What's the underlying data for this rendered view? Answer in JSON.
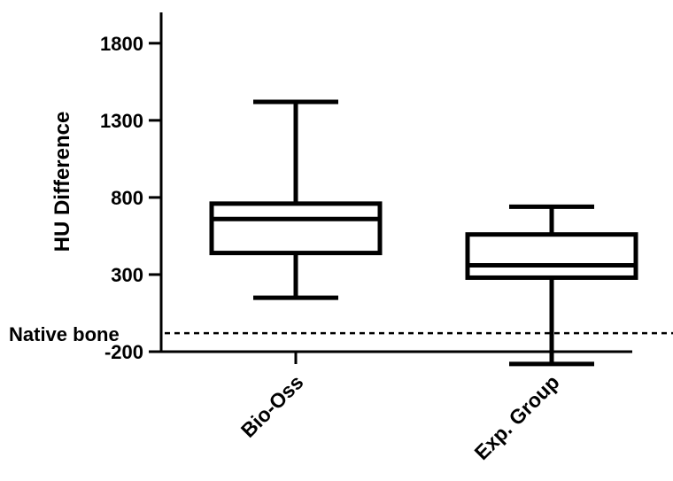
{
  "chart_data": {
    "type": "box",
    "ylabel": "HU Difference",
    "ylim": [
      -200,
      2000
    ],
    "yticks": [
      -200,
      300,
      800,
      1300,
      1800
    ],
    "categories": [
      "Bio-Oss",
      "Exp. Group"
    ],
    "boxes": [
      {
        "name": "Bio-Oss",
        "min": 150,
        "q1": 440,
        "median": 660,
        "q3": 760,
        "max": 1420
      },
      {
        "name": "Exp. Group",
        "min": -280,
        "q1": 280,
        "median": 360,
        "q3": 560,
        "max": 740
      }
    ],
    "reference_line": {
      "label": "Native bone",
      "value": -80,
      "style": "dashed"
    }
  }
}
